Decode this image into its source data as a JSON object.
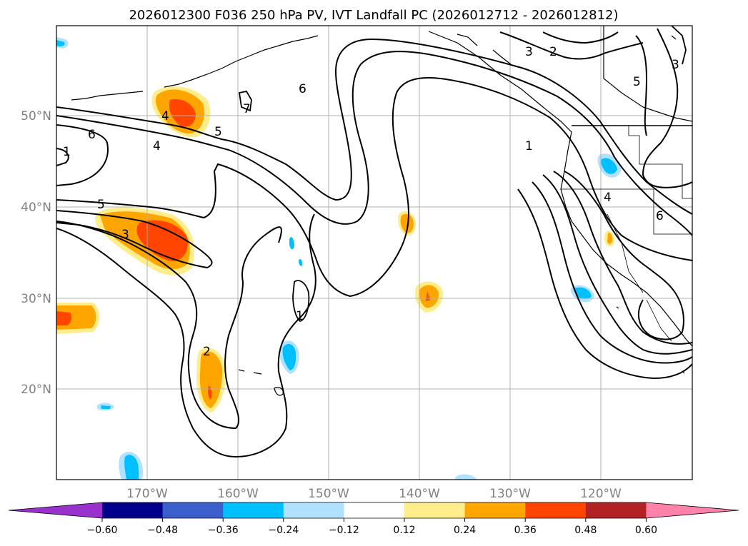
{
  "title": "2026012300 F036 250 hPa PV, IVT Landfall PC (2026012712 - 2026012812)",
  "axes": {
    "lat_labels": [
      "50°N",
      "40°N",
      "30°N",
      "20°N"
    ],
    "lon_labels": [
      "170°W",
      "160°W",
      "150°W",
      "140°W",
      "130°W",
      "120°W"
    ]
  },
  "contour_labels": [
    "2",
    "3",
    "7",
    "6",
    "5",
    "4",
    "6",
    "4",
    "5",
    "3",
    "1",
    "1",
    "4",
    "6",
    "5",
    "3",
    "2",
    "1"
  ],
  "colorbar": {
    "ticks": [
      "−0.60",
      "−0.48",
      "−0.36",
      "−0.24",
      "−0.12",
      "0.12",
      "0.24",
      "0.36",
      "0.48",
      "0.60"
    ],
    "colors": [
      "#9932cc",
      "#00008b",
      "#3a5fcd",
      "#00bfff",
      "#b0e2ff",
      "#ffffff",
      "#ffec8b",
      "#ffa500",
      "#ff4500",
      "#b22222",
      "#ff82ab"
    ]
  },
  "colors": {
    "contour": "#000000",
    "grid": "#b0b0b0",
    "label_gray": "#808080"
  }
}
